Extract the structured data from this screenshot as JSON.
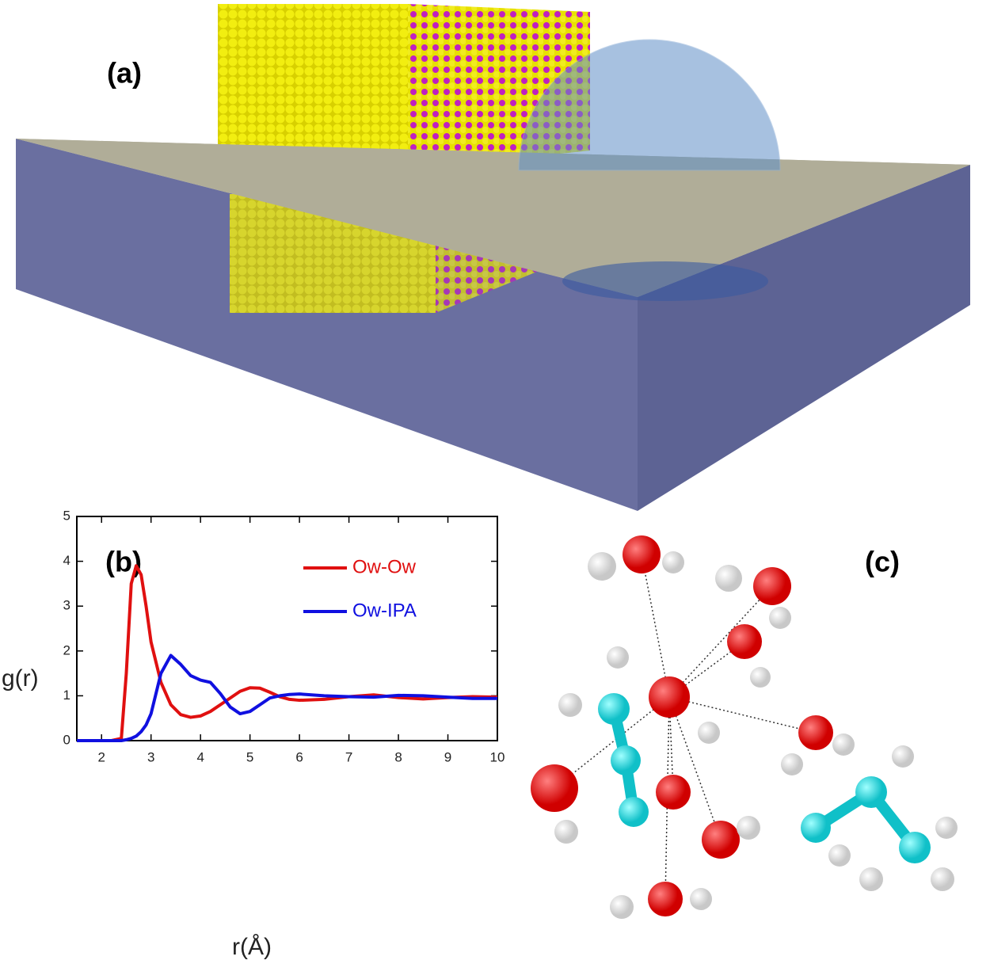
{
  "panel_labels": [
    "(a)",
    "(c)"
  ],
  "chart_data": {
    "type": "line",
    "panel_label": "(b)",
    "x_label": "r(Å)",
    "y_label": "g(r)",
    "x": [
      1.5,
      2,
      2.2,
      2.4,
      2.5,
      2.6,
      2.7,
      2.8,
      2.9,
      3.0,
      3.2,
      3.4,
      3.6,
      3.8,
      4.0,
      4.2,
      4.4,
      4.6,
      4.8,
      5.0,
      5.2,
      5.4,
      5.6,
      5.8,
      6.0,
      6.5,
      7,
      7.5,
      8,
      8.5,
      9,
      9.5,
      10
    ],
    "series": [
      {
        "name": "Ow-Ow",
        "color": "#e01010",
        "values": [
          0,
          0,
          0,
          0.05,
          1.5,
          3.5,
          3.9,
          3.7,
          3.0,
          2.2,
          1.3,
          0.8,
          0.58,
          0.52,
          0.55,
          0.65,
          0.8,
          0.95,
          1.1,
          1.18,
          1.17,
          1.08,
          0.98,
          0.92,
          0.9,
          0.92,
          0.98,
          1.02,
          0.96,
          0.93,
          0.96,
          0.98,
          0.97
        ]
      },
      {
        "name": "Ow-IPA",
        "color": "#1010e0",
        "values": [
          0,
          0,
          0,
          0,
          0.02,
          0.05,
          0.1,
          0.2,
          0.35,
          0.6,
          1.5,
          1.9,
          1.7,
          1.45,
          1.35,
          1.3,
          1.05,
          0.75,
          0.6,
          0.65,
          0.8,
          0.95,
          1.0,
          1.03,
          1.04,
          1.0,
          0.98,
          0.97,
          1.01,
          1.0,
          0.97,
          0.94,
          0.94
        ]
      }
    ],
    "xlim": [
      1.5,
      10
    ],
    "ylim": [
      0,
      5
    ],
    "xticks": [
      2,
      3,
      4,
      5,
      6,
      7,
      8,
      9,
      10
    ],
    "yticks": [
      0,
      1,
      2,
      3,
      4,
      5
    ],
    "legend": "upper right",
    "grid": false
  }
}
